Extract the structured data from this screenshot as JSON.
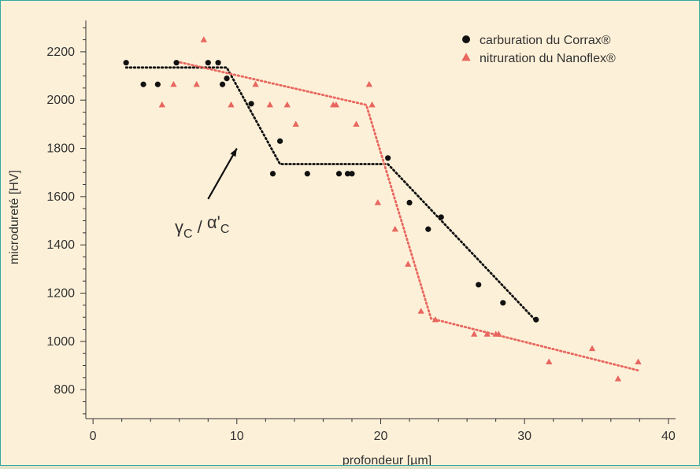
{
  "chart_data": {
    "type": "scatter",
    "xlabel": "profondeur [µm]",
    "ylabel": "microdureté [HV]",
    "xlim": [
      -0.5,
      40.5
    ],
    "ylim": [
      680,
      2330
    ],
    "x_ticks": [
      0,
      10,
      20,
      30,
      40
    ],
    "y_ticks": [
      800,
      1000,
      1200,
      1400,
      1600,
      1800,
      2000,
      2200
    ],
    "grid": false,
    "legend_position": "top-right",
    "series": [
      {
        "name": "carburation du Corrax®",
        "marker": "circle",
        "color": "#111111",
        "points": [
          [
            2.3,
            2155
          ],
          [
            3.5,
            2065
          ],
          [
            4.5,
            2065
          ],
          [
            5.8,
            2155
          ],
          [
            8.0,
            2155
          ],
          [
            8.7,
            2155
          ],
          [
            9.0,
            2065
          ],
          [
            9.3,
            2090
          ],
          [
            11.0,
            1985
          ],
          [
            12.5,
            1695
          ],
          [
            13.0,
            1830
          ],
          [
            14.9,
            1695
          ],
          [
            17.1,
            1695
          ],
          [
            17.7,
            1695
          ],
          [
            18.0,
            1695
          ],
          [
            20.5,
            1760
          ],
          [
            22.0,
            1575
          ],
          [
            23.3,
            1465
          ],
          [
            24.2,
            1515
          ],
          [
            26.8,
            1235
          ],
          [
            28.5,
            1160
          ],
          [
            30.8,
            1090
          ]
        ],
        "trend": [
          [
            2.3,
            2135
          ],
          [
            9.3,
            2135
          ],
          [
            13.0,
            1735
          ],
          [
            20.5,
            1735
          ],
          [
            30.8,
            1085
          ]
        ]
      },
      {
        "name": "nitruration du Nanoflex®",
        "marker": "triangle",
        "color": "#e8675f",
        "points": [
          [
            4.8,
            1980
          ],
          [
            5.6,
            2065
          ],
          [
            7.2,
            2065
          ],
          [
            7.7,
            2250
          ],
          [
            9.6,
            1980
          ],
          [
            11.3,
            2065
          ],
          [
            12.3,
            1980
          ],
          [
            13.5,
            1980
          ],
          [
            14.1,
            1900
          ],
          [
            16.7,
            1980
          ],
          [
            16.9,
            1980
          ],
          [
            18.3,
            1900
          ],
          [
            19.2,
            2065
          ],
          [
            19.4,
            1980
          ],
          [
            19.8,
            1575
          ],
          [
            21.0,
            1465
          ],
          [
            21.9,
            1320
          ],
          [
            22.8,
            1125
          ],
          [
            23.8,
            1090
          ],
          [
            26.5,
            1030
          ],
          [
            27.4,
            1030
          ],
          [
            28.0,
            1030
          ],
          [
            28.2,
            1030
          ],
          [
            31.7,
            915
          ],
          [
            34.7,
            970
          ],
          [
            36.5,
            845
          ],
          [
            37.9,
            915
          ]
        ],
        "trend": [
          [
            5.8,
            2160
          ],
          [
            19.0,
            1980
          ],
          [
            23.5,
            1095
          ],
          [
            37.9,
            880
          ]
        ]
      }
    ],
    "annotation": {
      "base": "γ",
      "base_sub": "C",
      "separator": "/",
      "phase": "α'",
      "phase_sub": "C",
      "arrow_from": [
        8.0,
        1590
      ],
      "arrow_to": [
        10.0,
        1800
      ]
    }
  }
}
